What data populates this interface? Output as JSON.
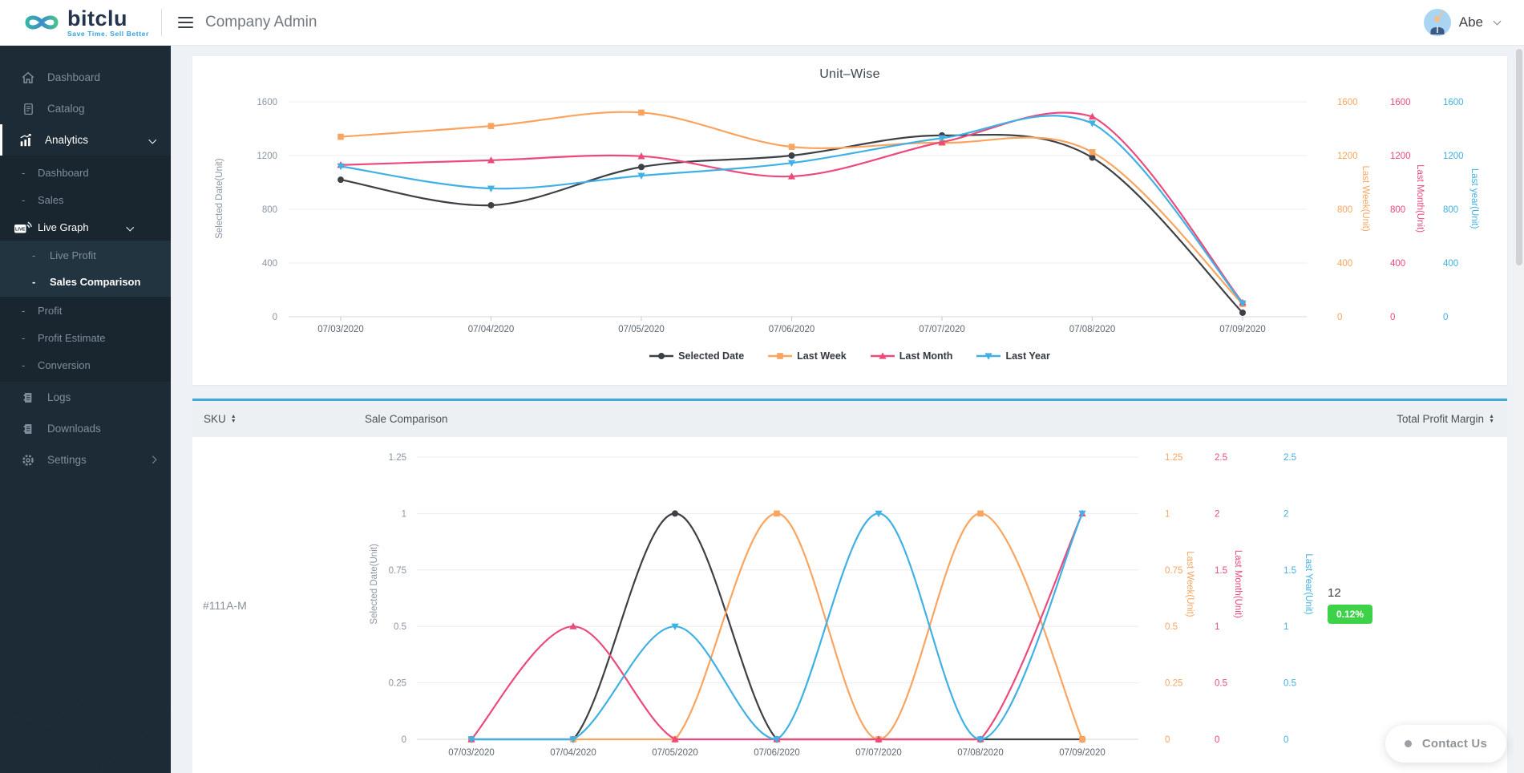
{
  "header": {
    "brand": "bitclu",
    "tagline": "Save Time. Sell Better",
    "page_title": "Company Admin",
    "user_name": "Abe"
  },
  "sidebar": {
    "dash": "-",
    "items": [
      {
        "label": "Dashboard",
        "icon": "home-icon"
      },
      {
        "label": "Catalog",
        "icon": "catalog-icon"
      },
      {
        "label": "Analytics",
        "icon": "analytics-icon",
        "active": true,
        "chevron": "down",
        "children": [
          {
            "label": "Dashboard"
          },
          {
            "label": "Sales"
          },
          {
            "label": "Live Graph",
            "icon": "live-graph-icon",
            "active": true,
            "chevron": "down",
            "children": [
              {
                "label": "Live Profit"
              },
              {
                "label": "Sales Comparison",
                "active": true
              }
            ]
          },
          {
            "label": "Profit"
          },
          {
            "label": "Profit Estimate"
          },
          {
            "label": "Conversion"
          }
        ]
      },
      {
        "label": "Logs",
        "icon": "logs-icon"
      },
      {
        "label": "Downloads",
        "icon": "downloads-icon"
      },
      {
        "label": "Settings",
        "icon": "settings-icon",
        "chevron": "right"
      }
    ]
  },
  "colors": {
    "accent_blue": "#41a8dc",
    "badge_green": "#3ed24b",
    "series_black": "#3d4045",
    "series_orange": "#f9a45f",
    "series_pink": "#ec4a7b",
    "series_blue": "#41b0e4"
  },
  "table": {
    "columns": [
      {
        "label": "SKU",
        "sortable": true
      },
      {
        "label": "Sale Comparison",
        "sortable": false
      },
      {
        "label": "Total Profit Margin",
        "sortable": true
      }
    ],
    "rows": [
      {
        "sku": "#111A-M",
        "total_units": "12",
        "profit_margin": "0.12%"
      }
    ]
  },
  "contact_us": {
    "label": "Contact Us"
  },
  "chart_data": [
    {
      "type": "line",
      "title": "Unit–Wise",
      "grid": true,
      "legend_position": "bottom",
      "x": [
        "07/03/2020",
        "07/04/2020",
        "07/05/2020",
        "07/06/2020",
        "07/07/2020",
        "07/08/2020",
        "07/09/2020"
      ],
      "series": [
        {
          "name": "Selected Date",
          "color": "#3d4045",
          "marker": "circle",
          "axis": "left",
          "axis_title": "Selected Date(Unit)",
          "ticks": [
            0,
            400,
            800,
            1200,
            1600
          ],
          "ylim": [
            0,
            1600
          ],
          "values": [
            1020,
            830,
            1115,
            1200,
            1350,
            1185,
            30
          ]
        },
        {
          "name": "Last Week",
          "color": "#f9a45f",
          "marker": "square",
          "axis": "right-1",
          "axis_title": "Last Week(Unit)",
          "ticks": [
            0,
            400,
            800,
            1200,
            1600
          ],
          "ylim": [
            0,
            1600
          ],
          "values": [
            1340,
            1420,
            1520,
            1265,
            1295,
            1225,
            95
          ]
        },
        {
          "name": "Last Month",
          "color": "#ec4a7b",
          "marker": "triangle-up",
          "axis": "right-2",
          "axis_title": "Last Month(Unit)",
          "ticks": [
            0,
            400,
            800,
            1200,
            1600
          ],
          "ylim": [
            0,
            1600
          ],
          "values": [
            1130,
            1165,
            1195,
            1045,
            1300,
            1490,
            105
          ]
        },
        {
          "name": "Last Year",
          "color": "#41b0e4",
          "marker": "triangle-down",
          "axis": "right-3",
          "axis_title": "Last year(Unit)",
          "ticks": [
            0,
            400,
            800,
            1200,
            1600
          ],
          "ylim": [
            0,
            1600
          ],
          "values": [
            1120,
            955,
            1050,
            1145,
            1330,
            1440,
            100
          ]
        }
      ]
    },
    {
      "type": "line",
      "title": "",
      "grid": true,
      "legend_position": "none",
      "sku": "#111A-M",
      "x": [
        "07/03/2020",
        "07/04/2020",
        "07/05/2020",
        "07/06/2020",
        "07/07/2020",
        "07/08/2020",
        "07/09/2020"
      ],
      "series": [
        {
          "name": "Selected Date",
          "color": "#3d4045",
          "marker": "circle",
          "axis": "left",
          "axis_title": "Selected Date(Unit)",
          "ticks": [
            0,
            0.25,
            0.5,
            0.75,
            1,
            1.25
          ],
          "ylim": [
            0,
            1.25
          ],
          "values": [
            0,
            0,
            1,
            0,
            0,
            0,
            0
          ]
        },
        {
          "name": "Last Week",
          "color": "#f9a45f",
          "marker": "square",
          "axis": "right-1",
          "axis_title": "Last Week(Unit)",
          "ticks": [
            0,
            0.25,
            0.5,
            0.75,
            1,
            1.25
          ],
          "ylim": [
            0,
            1.25
          ],
          "values": [
            0,
            0,
            0,
            1,
            0,
            1,
            0
          ]
        },
        {
          "name": "Last Month",
          "color": "#ec4a7b",
          "marker": "triangle-up",
          "axis": "right-2",
          "axis_title": "Last Month(Unit)",
          "ticks": [
            0,
            0.5,
            1,
            1.5,
            2,
            2.5
          ],
          "ylim": [
            0,
            2.5
          ],
          "values": [
            0,
            1,
            0,
            0,
            0,
            0,
            2
          ]
        },
        {
          "name": "Last Year",
          "color": "#41b0e4",
          "marker": "triangle-down",
          "axis": "right-3",
          "axis_title": "Last Year(Unit)",
          "ticks": [
            0,
            0.5,
            1,
            1.5,
            2,
            2.5
          ],
          "ylim": [
            0,
            2.5
          ],
          "values": [
            0,
            0,
            1,
            0,
            2,
            0,
            2
          ]
        }
      ]
    }
  ]
}
